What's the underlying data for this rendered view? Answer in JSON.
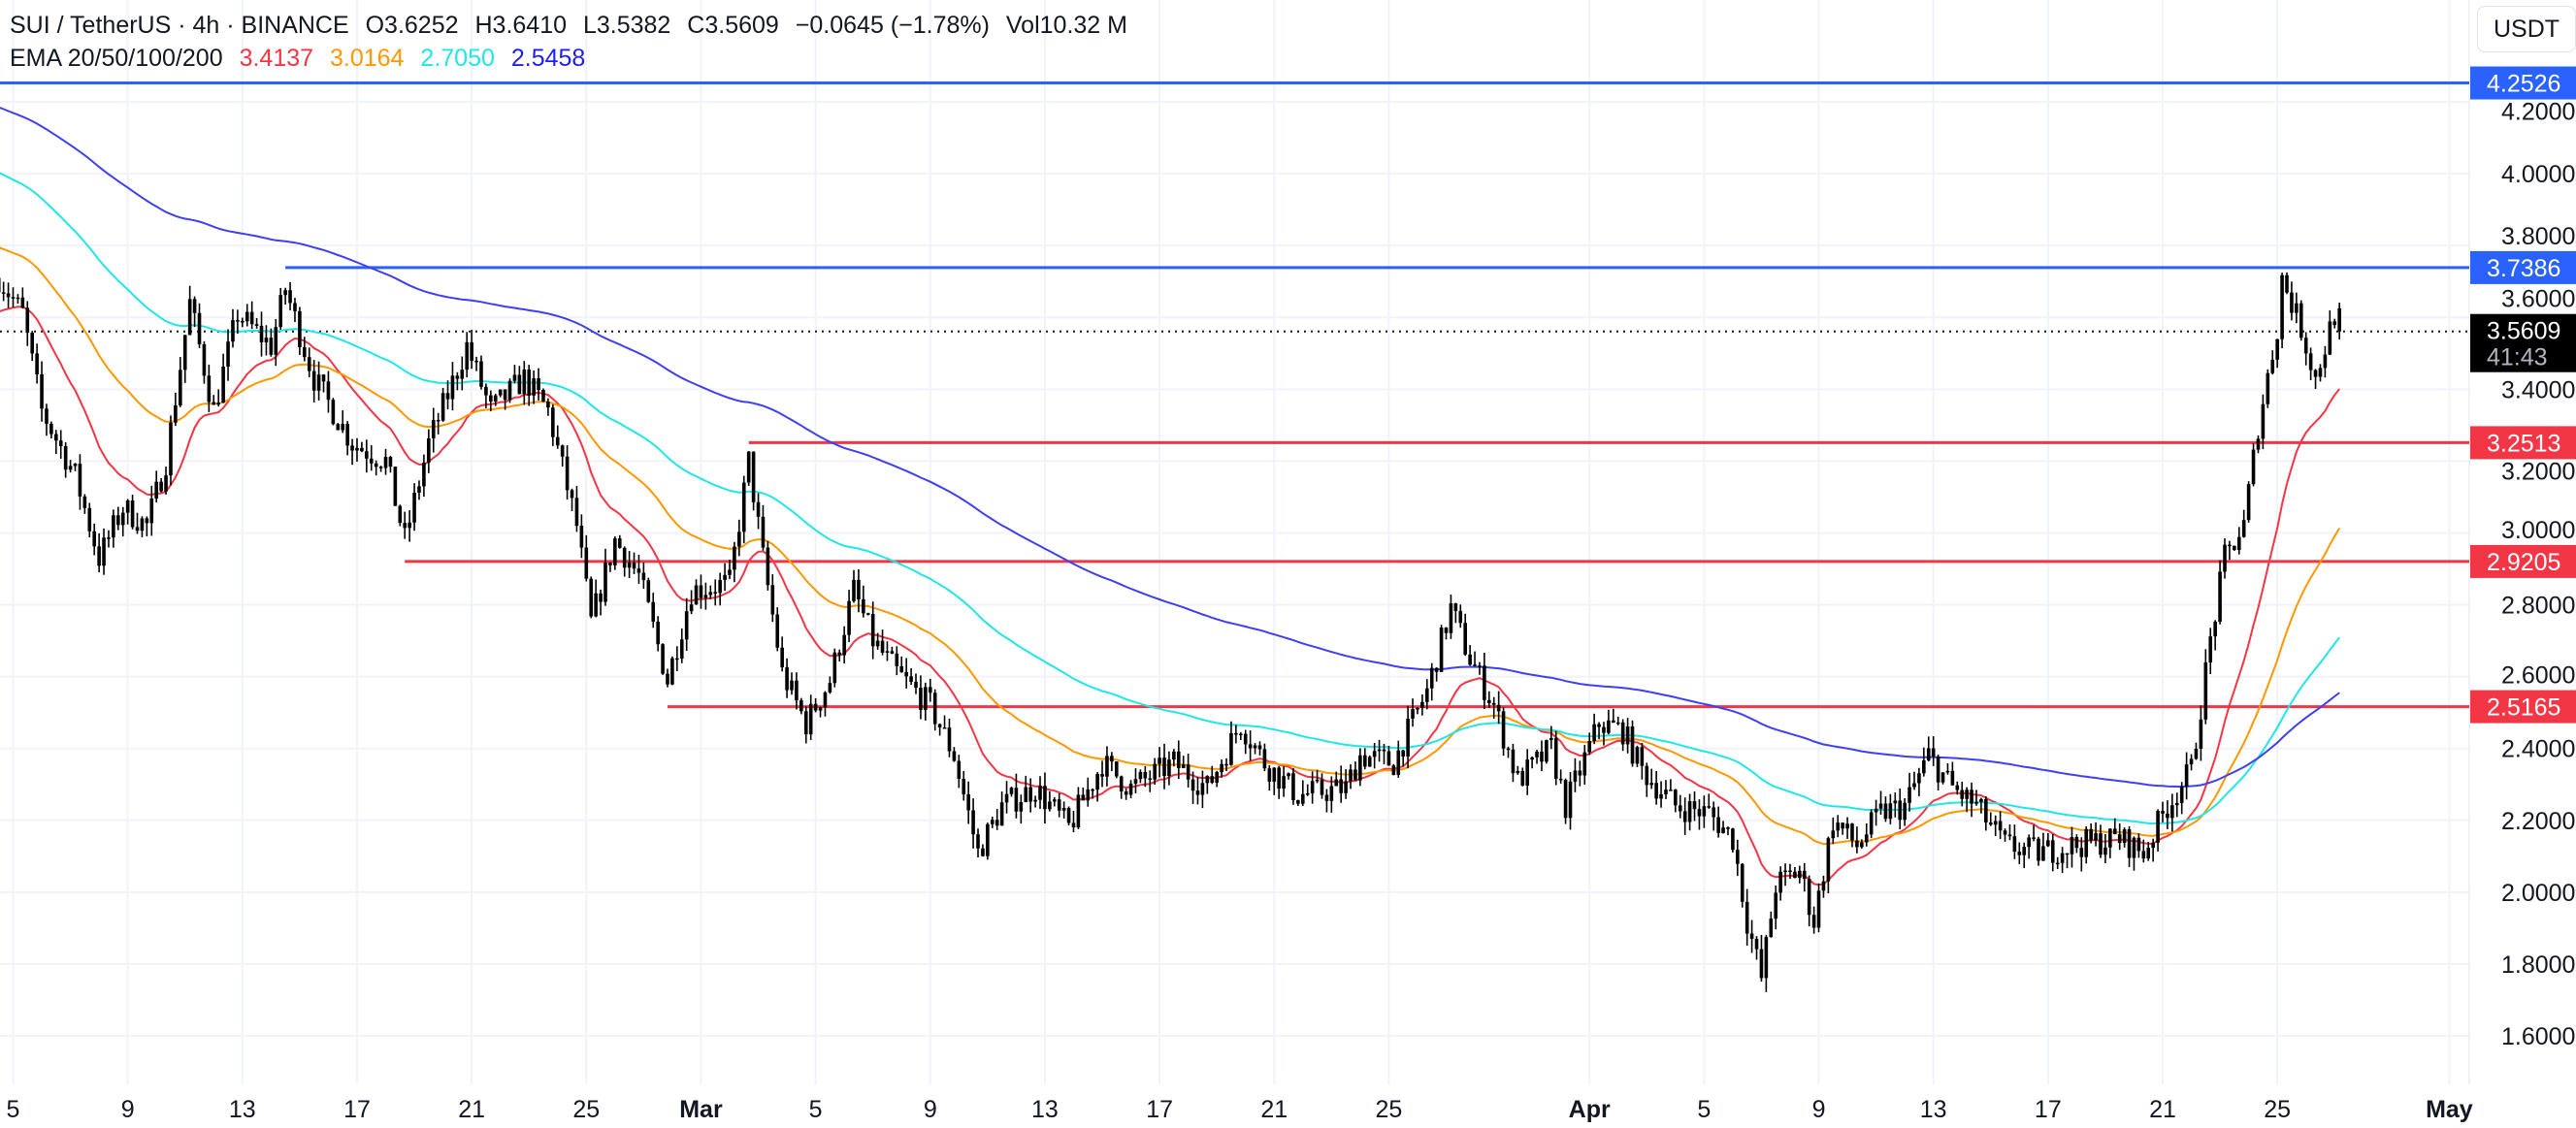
{
  "header": {
    "symbol": "SUI / TetherUS · 4h · BINANCE",
    "open": "O3.6252",
    "high": "H3.6410",
    "low": "L3.5382",
    "close": "C3.5609",
    "change": "−0.0645 (−1.78%)",
    "volume": "Vol10.32 M",
    "ema_label": "EMA 20/50/100/200",
    "ema_values": [
      {
        "value": "3.4137",
        "color": "#f23645"
      },
      {
        "value": "3.0164",
        "color": "#ff9800"
      },
      {
        "value": "2.7050",
        "color": "#22e5e5"
      },
      {
        "value": "2.5458",
        "color": "#1e1ef0"
      }
    ]
  },
  "currency": "USDT",
  "countdown": "41:43",
  "chart_data": {
    "type": "candlestick",
    "interval": "4h",
    "ylim": [
      1.45,
      4.33
    ],
    "y_ticks": [
      "4.2000",
      "4.0000",
      "3.8000",
      "3.6000",
      "3.4000",
      "3.2000",
      "3.0000",
      "2.8000",
      "2.6000",
      "2.4000",
      "2.2000",
      "2.0000",
      "1.8000",
      "1.6000"
    ],
    "x_ticks": [
      {
        "label": "5",
        "date": "02-05",
        "bold": false
      },
      {
        "label": "9",
        "date": "02-09",
        "bold": false
      },
      {
        "label": "13",
        "date": "02-13",
        "bold": false
      },
      {
        "label": "17",
        "date": "02-17",
        "bold": false
      },
      {
        "label": "21",
        "date": "02-21",
        "bold": false
      },
      {
        "label": "25",
        "date": "02-25",
        "bold": false
      },
      {
        "label": "Mar",
        "date": "03-01",
        "bold": true
      },
      {
        "label": "5",
        "date": "03-05",
        "bold": false
      },
      {
        "label": "9",
        "date": "03-09",
        "bold": false
      },
      {
        "label": "13",
        "date": "03-13",
        "bold": false
      },
      {
        "label": "17",
        "date": "03-17",
        "bold": false
      },
      {
        "label": "21",
        "date": "03-21",
        "bold": false
      },
      {
        "label": "25",
        "date": "03-25",
        "bold": false
      },
      {
        "label": "Apr",
        "date": "04-01",
        "bold": true
      },
      {
        "label": "5",
        "date": "04-05",
        "bold": false
      },
      {
        "label": "9",
        "date": "04-09",
        "bold": false
      },
      {
        "label": "13",
        "date": "04-13",
        "bold": false
      },
      {
        "label": "17",
        "date": "04-17",
        "bold": false
      },
      {
        "label": "21",
        "date": "04-21",
        "bold": false
      },
      {
        "label": "25",
        "date": "04-25",
        "bold": false
      },
      {
        "label": "May",
        "date": "05-01",
        "bold": true
      }
    ],
    "price_path": [
      [
        "02-04T12",
        3.71
      ],
      [
        "02-05T08",
        3.61
      ],
      [
        "02-06T00",
        3.34
      ],
      [
        "02-07T04",
        3.16
      ],
      [
        "02-08T00",
        2.93
      ],
      [
        "02-08T20",
        3.07
      ],
      [
        "02-09T16",
        3.02
      ],
      [
        "02-10T08",
        3.2
      ],
      [
        "02-11T04",
        3.64
      ],
      [
        "02-12T00",
        3.34
      ],
      [
        "02-12T20",
        3.61
      ],
      [
        "02-14T00",
        3.52
      ],
      [
        "02-14T12",
        3.68
      ],
      [
        "02-15T12",
        3.43
      ],
      [
        "02-16T20",
        3.25
      ],
      [
        "02-18T00",
        3.2
      ],
      [
        "02-18T16",
        2.98
      ],
      [
        "02-19T12",
        3.25
      ],
      [
        "02-20T20",
        3.52
      ],
      [
        "02-21T16",
        3.34
      ],
      [
        "02-22T20",
        3.43
      ],
      [
        "02-23T16",
        3.34
      ],
      [
        "02-24T16",
        3.02
      ],
      [
        "02-25T04",
        2.75
      ],
      [
        "02-26T00",
        2.98
      ],
      [
        "02-26T20",
        2.88
      ],
      [
        "02-27T20",
        2.59
      ],
      [
        "02-28T16",
        2.84
      ],
      [
        "03-02T00",
        2.86
      ],
      [
        "03-02T16",
        3.2
      ],
      [
        "03-03T04",
        2.93
      ],
      [
        "03-03T20",
        2.61
      ],
      [
        "03-04T16",
        2.47
      ],
      [
        "03-05T12",
        2.59
      ],
      [
        "03-06T08",
        2.84
      ],
      [
        "03-07T00",
        2.7
      ],
      [
        "03-07T20",
        2.61
      ],
      [
        "03-09T00",
        2.52
      ],
      [
        "03-09T20",
        2.38
      ],
      [
        "03-10T16",
        2.11
      ],
      [
        "03-11T12",
        2.24
      ],
      [
        "03-12T16",
        2.29
      ],
      [
        "03-13T20",
        2.18
      ],
      [
        "03-15T00",
        2.36
      ],
      [
        "03-16T00",
        2.29
      ],
      [
        "03-17T12",
        2.36
      ],
      [
        "03-18T16",
        2.29
      ],
      [
        "03-19T20",
        2.47
      ],
      [
        "03-20T16",
        2.36
      ],
      [
        "03-21T20",
        2.27
      ],
      [
        "03-23T12",
        2.29
      ],
      [
        "03-24T00",
        2.38
      ],
      [
        "03-25T04",
        2.36
      ],
      [
        "03-26T08",
        2.56
      ],
      [
        "03-27T04",
        2.79
      ],
      [
        "03-27T20",
        2.65
      ],
      [
        "03-28T16",
        2.52
      ],
      [
        "03-29T12",
        2.31
      ],
      [
        "03-30T16",
        2.4
      ],
      [
        "03-31T04",
        2.24
      ],
      [
        "04-01T08",
        2.47
      ],
      [
        "04-02T04",
        2.45
      ],
      [
        "04-02T20",
        2.34
      ],
      [
        "04-04T00",
        2.24
      ],
      [
        "04-05T04",
        2.22
      ],
      [
        "04-06T00",
        2.15
      ],
      [
        "04-06T12",
        1.92
      ],
      [
        "04-07T00",
        1.76
      ],
      [
        "04-07T12",
        2.02
      ],
      [
        "04-08T08",
        2.06
      ],
      [
        "04-08T20",
        1.92
      ],
      [
        "04-09T12",
        2.2
      ],
      [
        "04-10T08",
        2.13
      ],
      [
        "04-11T04",
        2.22
      ],
      [
        "04-12T00",
        2.24
      ],
      [
        "04-12T20",
        2.38
      ],
      [
        "04-13T16",
        2.29
      ],
      [
        "04-14T12",
        2.24
      ],
      [
        "04-15T12",
        2.13
      ],
      [
        "04-16T16",
        2.11
      ],
      [
        "04-17T20",
        2.13
      ],
      [
        "04-19T12",
        2.15
      ],
      [
        "04-20T08",
        2.11
      ],
      [
        "04-21T04",
        2.24
      ],
      [
        "04-22T00",
        2.34
      ],
      [
        "04-22T16",
        2.7
      ],
      [
        "04-23T04",
        2.93
      ],
      [
        "04-23T20",
        3.02
      ],
      [
        "04-24T08",
        3.3
      ],
      [
        "04-25T00",
        3.57
      ],
      [
        "04-25T04",
        3.71
      ],
      [
        "04-25T20",
        3.57
      ],
      [
        "04-26T08",
        3.43
      ],
      [
        "04-27T00",
        3.61
      ],
      [
        "04-27T04",
        3.5609
      ]
    ],
    "last_candle": {
      "open": 3.6252,
      "high": 3.641,
      "low": 3.5382,
      "close": 3.5609
    },
    "ema_series": [
      {
        "name": "EMA 20",
        "period": 20,
        "start": 3.61,
        "color": "#f23645"
      },
      {
        "name": "EMA 50",
        "period": 50,
        "start": 3.8,
        "color": "#ff9800"
      },
      {
        "name": "EMA 100",
        "period": 100,
        "start": 4.01,
        "color": "#22e5e5"
      },
      {
        "name": "EMA 200",
        "period": 200,
        "start": 4.19,
        "color": "#3f3ff5"
      }
    ],
    "horizontal_lines": [
      {
        "price": 4.2526,
        "label": "4.2526",
        "from": "02-04T00",
        "color": "#2962ff"
      },
      {
        "price": 3.7386,
        "label": "3.7386",
        "from": "02-14T12",
        "color": "#2962ff"
      },
      {
        "price": 3.2513,
        "label": "3.2513",
        "from": "03-02T16",
        "color": "#f23645"
      },
      {
        "price": 2.9205,
        "label": "2.9205",
        "from": "02-18T16",
        "color": "#f23645"
      },
      {
        "price": 2.5165,
        "label": "2.5165",
        "from": "02-27T20",
        "color": "#f23645"
      }
    ],
    "current_price": {
      "price": 3.5609,
      "label": "3.5609"
    }
  }
}
